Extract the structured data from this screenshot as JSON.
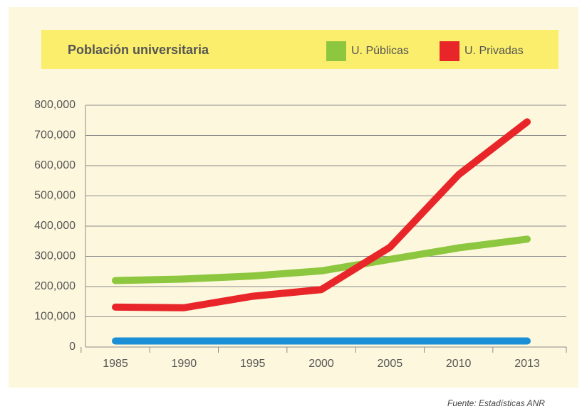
{
  "chart_data": {
    "type": "line",
    "title": "Población universitaria",
    "categories": [
      "1985",
      "1990",
      "1995",
      "2000",
      "2005",
      "2010",
      "2013"
    ],
    "series": [
      {
        "name": "U. Públicas",
        "color": "#8dc63f",
        "values": [
          220000,
          225000,
          235000,
          252000,
          290000,
          328000,
          357000
        ]
      },
      {
        "name": "U. Privadas",
        "color": "#e8262a",
        "values": [
          132000,
          130000,
          168000,
          190000,
          330000,
          570000,
          745000
        ]
      },
      {
        "color": "#1b8fd6",
        "values": [
          20000,
          20000,
          20000,
          20000,
          20000,
          20000,
          20000
        ]
      }
    ],
    "ylim": [
      0,
      800000
    ],
    "yticks": [
      0,
      {
        "value": 100000,
        "label": "100,000"
      },
      {
        "value": 200000,
        "label": "200,000"
      },
      {
        "value": 300000,
        "label": "300,000"
      },
      {
        "value": 400000,
        "label": "400,000"
      },
      {
        "value": 500000,
        "label": "500,000"
      },
      {
        "value": 600000,
        "label": "600,000"
      },
      {
        "value": 700000,
        "label": "700,000"
      },
      {
        "value": 800000,
        "label": "800,000"
      }
    ],
    "grid": true,
    "source": "Fuente: Estadísticas ANR"
  }
}
